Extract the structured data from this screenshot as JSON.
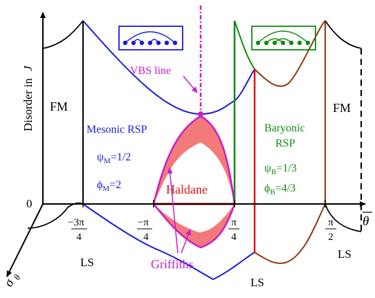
{
  "axes": {
    "y_label": "Disorder in",
    "y_label_symbol": "J",
    "x_label": "θ",
    "z_label": "σ",
    "z_label_sub": "θ",
    "origin": "0"
  },
  "x_ticks": [
    {
      "num": "−3π",
      "den": "4"
    },
    {
      "num": "−π",
      "den": "4"
    },
    {
      "num": "π",
      "den": "4"
    },
    {
      "num": "π",
      "den": "2"
    }
  ],
  "regions": {
    "fm_left": "FM",
    "fm_right": "FM",
    "mesonic": "Mesonic RSP",
    "psi_m": {
      "sym": "ψ",
      "sub": "M",
      "val": "=1/2"
    },
    "phi_m": {
      "sym": "ϕ",
      "sub": "M",
      "val": "=2"
    },
    "baryonic_1": "Baryonic",
    "baryonic_2": "RSP",
    "psi_b": {
      "sym": "ψ",
      "sub": "B",
      "val": "=1/3"
    },
    "phi_b": {
      "sym": "ϕ",
      "sub": "B",
      "val": "=4/3"
    },
    "haldane": "Haldane",
    "griffiths": "Griffiths",
    "vbs": "VBS line",
    "ls_1": "LS",
    "ls_2": "LS",
    "ls_3": "LS"
  },
  "colors": {
    "mesonic": "#1a1adb",
    "baryonic": "#0f8a0f",
    "haldane": "#e01010",
    "griffiths_fill": "#f47a7a",
    "griffiths_edge": "#c81ec8",
    "vbs": "#c81ec8",
    "brown": "#8b3a0e",
    "black": "#000000"
  }
}
